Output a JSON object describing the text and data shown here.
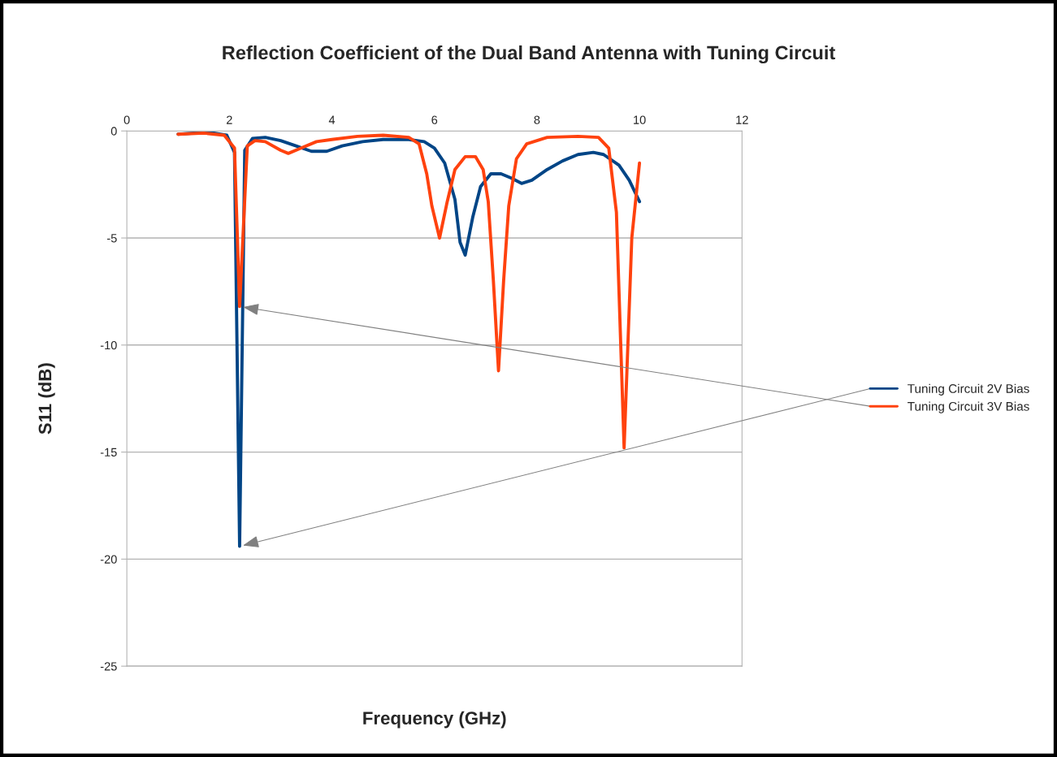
{
  "chart_data": {
    "type": "line",
    "title": "Reflection Coefficient of the Dual Band Antenna with Tuning Circuit",
    "xlabel": "Frequency (GHz)",
    "ylabel": "S11 (dB)",
    "xlim": [
      0,
      12
    ],
    "xticks": [
      0,
      2,
      4,
      6,
      8,
      10,
      12
    ],
    "ylim": [
      -25,
      0
    ],
    "yticks": [
      -25,
      -20,
      -15,
      -10,
      -5,
      0
    ],
    "grid": "y",
    "legend": "right",
    "marker": "none",
    "line_style": "solid",
    "series": [
      {
        "name": "Tuning Circuit 2V Bias",
        "color": "#004586",
        "x": [
          1,
          1.3,
          1.7,
          1.95,
          2.1,
          2.2,
          2.3,
          2.45,
          2.7,
          3.0,
          3.3,
          3.6,
          3.9,
          4.2,
          4.6,
          5.0,
          5.5,
          5.8,
          6.0,
          6.2,
          6.4,
          6.5,
          6.6,
          6.75,
          6.9,
          7.1,
          7.3,
          7.5,
          7.7,
          7.9,
          8.2,
          8.5,
          8.8,
          9.1,
          9.3,
          9.6,
          9.8,
          10.0
        ],
        "values": [
          -0.15,
          -0.1,
          -0.1,
          -0.2,
          -1.0,
          -19.4,
          -0.9,
          -0.35,
          -0.3,
          -0.45,
          -0.7,
          -0.95,
          -0.95,
          -0.7,
          -0.5,
          -0.4,
          -0.4,
          -0.5,
          -0.8,
          -1.5,
          -3.2,
          -5.2,
          -5.8,
          -4.0,
          -2.6,
          -2.0,
          -2.0,
          -2.2,
          -2.45,
          -2.3,
          -1.8,
          -1.4,
          -1.1,
          -1.0,
          -1.1,
          -1.6,
          -2.3,
          -3.3
        ]
      },
      {
        "name": "Tuning Circuit 3V Bias",
        "color": "#ff420e",
        "x": [
          1,
          1.5,
          1.9,
          2.1,
          2.2,
          2.35,
          2.5,
          2.7,
          3.0,
          3.15,
          3.4,
          3.7,
          4.0,
          4.5,
          5.0,
          5.5,
          5.7,
          5.85,
          5.95,
          6.1,
          6.25,
          6.4,
          6.6,
          6.8,
          6.95,
          7.05,
          7.15,
          7.25,
          7.35,
          7.45,
          7.6,
          7.8,
          8.2,
          8.8,
          9.2,
          9.4,
          9.55,
          9.7,
          9.85,
          10.0
        ],
        "values": [
          -0.15,
          -0.1,
          -0.2,
          -0.8,
          -8.2,
          -0.7,
          -0.45,
          -0.5,
          -0.9,
          -1.05,
          -0.8,
          -0.5,
          -0.4,
          -0.25,
          -0.2,
          -0.3,
          -0.6,
          -2.0,
          -3.5,
          -5.0,
          -3.3,
          -1.8,
          -1.2,
          -1.2,
          -1.8,
          -3.3,
          -7,
          -11.2,
          -7,
          -3.5,
          -1.3,
          -0.6,
          -0.3,
          -0.25,
          -0.3,
          -0.8,
          -3.8,
          -14.8,
          -5,
          -1.5
        ]
      }
    ]
  }
}
